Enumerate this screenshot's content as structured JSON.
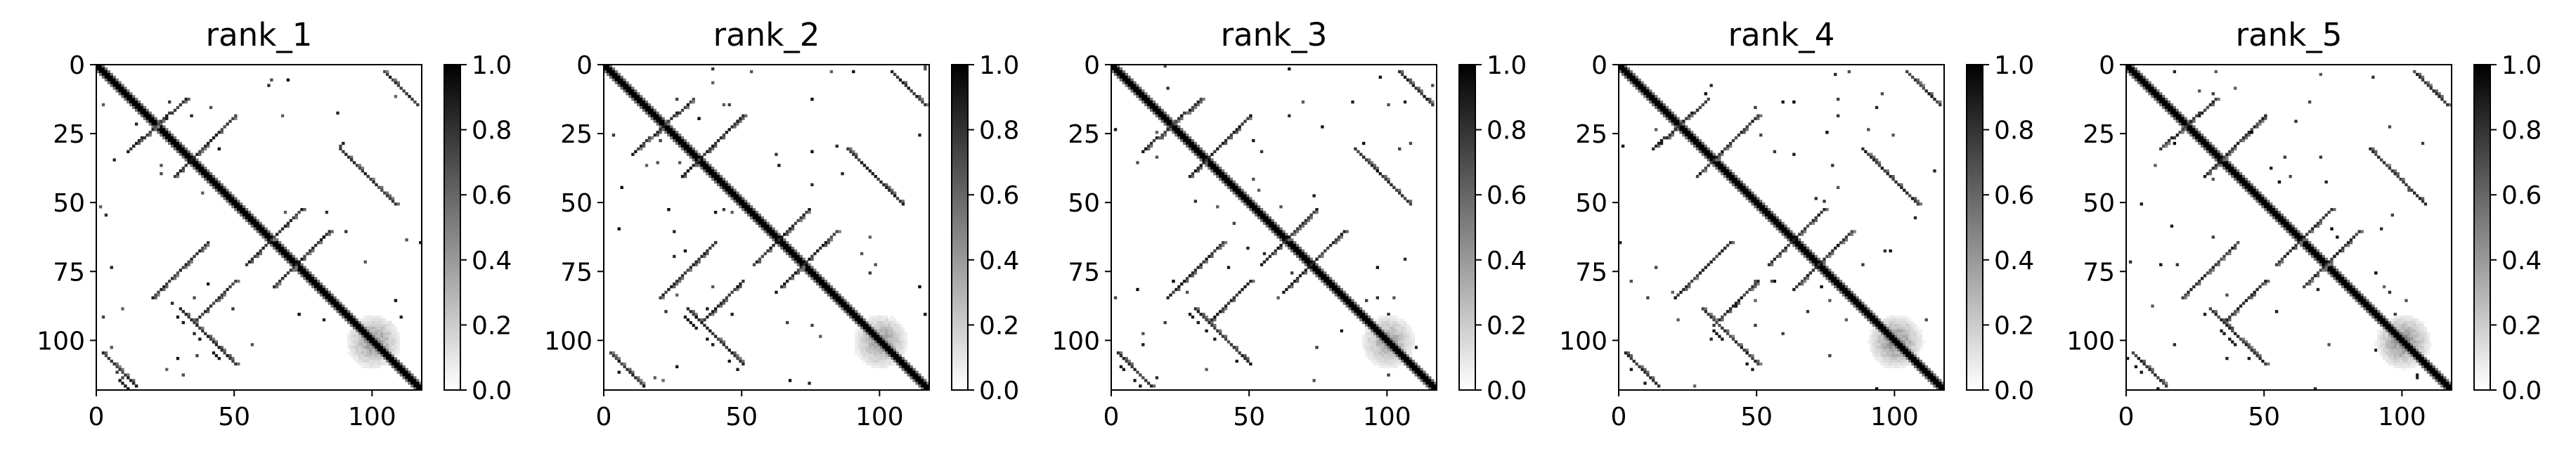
{
  "chart_data": {
    "type": "heatmap",
    "colormap": "gray_r",
    "panels": [
      {
        "title": "rank_1",
        "ridge_strength": 0.92,
        "corner_blur": 0.55
      },
      {
        "title": "rank_2",
        "ridge_strength": 0.93,
        "corner_blur": 0.55
      },
      {
        "title": "rank_3",
        "ridge_strength": 0.94,
        "corner_blur": 0.5
      },
      {
        "title": "rank_4",
        "ridge_strength": 0.91,
        "corner_blur": 0.6
      },
      {
        "title": "rank_5",
        "ridge_strength": 0.9,
        "corner_blur": 0.62
      }
    ],
    "matrix_size": 118,
    "x_ticks": [
      0,
      50,
      100
    ],
    "y_ticks": [
      0,
      25,
      50,
      75,
      100
    ],
    "xlim": [
      0,
      118
    ],
    "ylim": [
      118,
      0
    ],
    "colorbar": {
      "ticks": [
        "0.0",
        "0.2",
        "0.4",
        "0.6",
        "0.8",
        "1.0"
      ],
      "vmin": 0.0,
      "vmax": 1.0
    },
    "structure": {
      "main_diagonal": {
        "from": 0,
        "to": 117,
        "value": 1.0
      },
      "contact_bands": [
        {
          "i0": 12,
          "j0": 32,
          "i1": 30,
          "j1": 12
        },
        {
          "i0": 40,
          "j0": 28,
          "i1": 18,
          "j1": 50
        },
        {
          "i0": 52,
          "j0": 74,
          "i1": 72,
          "j1": 54
        },
        {
          "i0": 60,
          "j0": 84,
          "i1": 80,
          "j1": 64
        },
        {
          "i0": 64,
          "j0": 40,
          "i1": 84,
          "j1": 20
        },
        {
          "i0": 92,
          "j0": 36,
          "i1": 78,
          "j1": 50
        },
        {
          "i0": 104,
          "j0": 2,
          "i1": 116,
          "j1": 14
        },
        {
          "i0": 2,
          "j0": 104,
          "i1": 14,
          "j1": 116
        },
        {
          "i0": 30,
          "j0": 88,
          "i1": 50,
          "j1": 108
        },
        {
          "i0": 88,
          "j0": 30,
          "i1": 108,
          "j1": 50
        }
      ]
    }
  }
}
